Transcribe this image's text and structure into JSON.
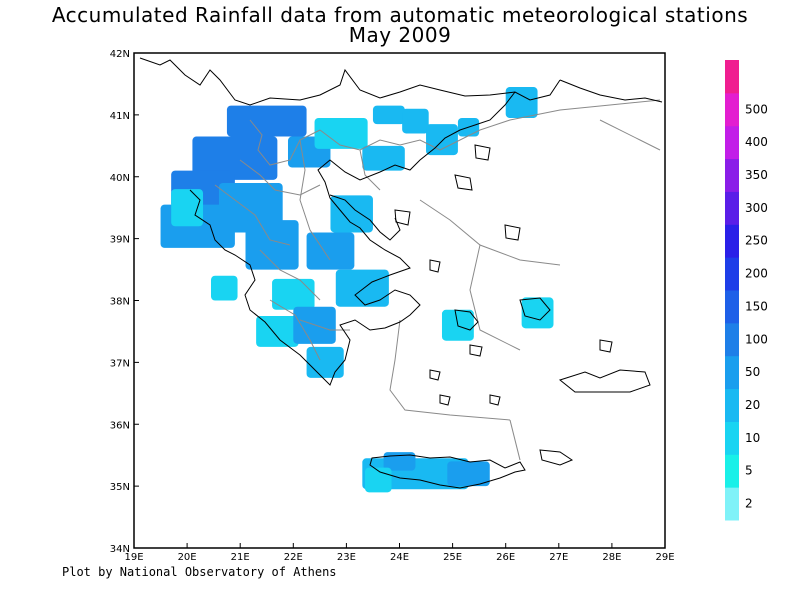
{
  "title": {
    "line1": "Accumulated Rainfall data from automatic meteorological stations",
    "line2": "May 2009"
  },
  "credit": "Plot by National Observatory of Athens",
  "map": {
    "lon_range": [
      19,
      29
    ],
    "lat_range": [
      34,
      42
    ],
    "x_tick_labels": [
      "19E",
      "20E",
      "21E",
      "22E",
      "23E",
      "24E",
      "25E",
      "26E",
      "27E",
      "28E",
      "29E"
    ],
    "y_tick_labels": [
      "34N",
      "35N",
      "36N",
      "37N",
      "38N",
      "39N",
      "40N",
      "41N",
      "42N"
    ],
    "frame_color": "#000000",
    "coast_color": "#000000",
    "border_color": "#8a8a8a"
  },
  "legend": {
    "levels": [
      "2",
      "5",
      "10",
      "20",
      "50",
      "100",
      "150",
      "200",
      "250",
      "300",
      "350",
      "400",
      "500"
    ],
    "colors": [
      "#7ff2f8",
      "#19f0e8",
      "#19d4f2",
      "#19b9f2",
      "#1a9eee",
      "#1e7fe8",
      "#1e60e8",
      "#1e3ee8",
      "#2a20e8",
      "#5a1ee8",
      "#8a1ee8",
      "#c21ee8",
      "#e31ed0",
      "#f01e90"
    ]
  },
  "rain_cells": [
    {
      "lon": 21.5,
      "lat": 40.9,
      "w": 1.5,
      "h": 0.5,
      "color": "#1e7fe8"
    },
    {
      "lon": 20.9,
      "lat": 40.3,
      "w": 1.6,
      "h": 0.7,
      "color": "#1e7fe8"
    },
    {
      "lon": 20.3,
      "lat": 39.8,
      "w": 1.2,
      "h": 0.6,
      "color": "#1e7fe8"
    },
    {
      "lon": 20.2,
      "lat": 39.2,
      "w": 1.4,
      "h": 0.7,
      "color": "#1a9eee"
    },
    {
      "lon": 21.2,
      "lat": 39.5,
      "w": 1.2,
      "h": 0.8,
      "color": "#1a9eee"
    },
    {
      "lon": 21.6,
      "lat": 38.9,
      "w": 1.0,
      "h": 0.8,
      "color": "#1a9eee"
    },
    {
      "lon": 20.0,
      "lat": 39.5,
      "w": 0.6,
      "h": 0.6,
      "color": "#19d4f2"
    },
    {
      "lon": 22.3,
      "lat": 40.4,
      "w": 0.8,
      "h": 0.5,
      "color": "#1a9eee"
    },
    {
      "lon": 22.9,
      "lat": 40.7,
      "w": 1.0,
      "h": 0.5,
      "color": "#19d4f2"
    },
    {
      "lon": 23.7,
      "lat": 40.3,
      "w": 0.8,
      "h": 0.4,
      "color": "#19b9f2"
    },
    {
      "lon": 23.8,
      "lat": 41.0,
      "w": 0.6,
      "h": 0.3,
      "color": "#19b9f2"
    },
    {
      "lon": 24.3,
      "lat": 40.9,
      "w": 0.5,
      "h": 0.4,
      "color": "#19b9f2"
    },
    {
      "lon": 24.8,
      "lat": 40.6,
      "w": 0.6,
      "h": 0.5,
      "color": "#19b9f2"
    },
    {
      "lon": 25.3,
      "lat": 40.8,
      "w": 0.4,
      "h": 0.3,
      "color": "#19b9f2"
    },
    {
      "lon": 26.3,
      "lat": 41.2,
      "w": 0.6,
      "h": 0.5,
      "color": "#19b9f2"
    },
    {
      "lon": 23.1,
      "lat": 39.4,
      "w": 0.8,
      "h": 0.6,
      "color": "#19b9f2"
    },
    {
      "lon": 22.7,
      "lat": 38.8,
      "w": 0.9,
      "h": 0.6,
      "color": "#1a9eee"
    },
    {
      "lon": 23.3,
      "lat": 38.2,
      "w": 1.0,
      "h": 0.6,
      "color": "#19b9f2"
    },
    {
      "lon": 22.0,
      "lat": 38.1,
      "w": 0.8,
      "h": 0.5,
      "color": "#19d4f2"
    },
    {
      "lon": 21.7,
      "lat": 37.5,
      "w": 0.8,
      "h": 0.5,
      "color": "#19d4f2"
    },
    {
      "lon": 22.4,
      "lat": 37.6,
      "w": 0.8,
      "h": 0.6,
      "color": "#1a9eee"
    },
    {
      "lon": 22.6,
      "lat": 37.0,
      "w": 0.7,
      "h": 0.5,
      "color": "#19b9f2"
    },
    {
      "lon": 20.7,
      "lat": 38.2,
      "w": 0.5,
      "h": 0.4,
      "color": "#19d4f2"
    },
    {
      "lon": 25.1,
      "lat": 37.6,
      "w": 0.6,
      "h": 0.5,
      "color": "#19d4f2"
    },
    {
      "lon": 26.6,
      "lat": 37.8,
      "w": 0.6,
      "h": 0.5,
      "color": "#19d4f2"
    },
    {
      "lon": 24.3,
      "lat": 35.2,
      "w": 2.0,
      "h": 0.5,
      "color": "#19b9f2"
    },
    {
      "lon": 24.0,
      "lat": 35.4,
      "w": 0.6,
      "h": 0.3,
      "color": "#1a9eee"
    },
    {
      "lon": 23.6,
      "lat": 35.1,
      "w": 0.5,
      "h": 0.4,
      "color": "#19d4f2"
    },
    {
      "lon": 25.3,
      "lat": 35.2,
      "w": 0.8,
      "h": 0.4,
      "color": "#1a9eee"
    }
  ]
}
